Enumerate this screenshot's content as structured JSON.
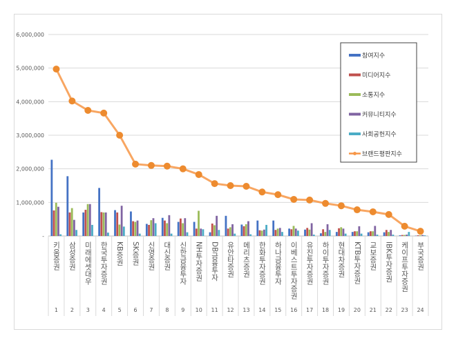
{
  "chart_data": {
    "type": "bar",
    "title": "",
    "xlabel": "",
    "ylabel": "",
    "ylim": [
      0,
      6000000
    ],
    "yticks": [
      0,
      1000000,
      2000000,
      3000000,
      4000000,
      5000000,
      6000000
    ],
    "ytick_labels": [
      "-",
      "1,000,000",
      "2,000,000",
      "3,000,000",
      "4,000,000",
      "5,000,000",
      "6,000,000"
    ],
    "grid": true,
    "legend_position": "top-right",
    "categories": [
      "키움증권",
      "삼성증권",
      "미래에셋대우",
      "한국투자증권",
      "KB증권",
      "SK증권",
      "신영증권",
      "대신증권",
      "신한금융투자",
      "NH투자증권",
      "DB금융투자",
      "유안타증권",
      "메리츠증권",
      "한화투자증권",
      "하나금융투자",
      "이베스트투자증권",
      "유진투자증권",
      "하이투자증권",
      "현대차증권",
      "KTB투자증권",
      "교보증권",
      "IBK투자증권",
      "케이프투자증권",
      "부국증권"
    ],
    "ranks": [
      "1",
      "2",
      "3",
      "4",
      "5",
      "6",
      "7",
      "8",
      "9",
      "10",
      "11",
      "12",
      "13",
      "14",
      "15",
      "16",
      "17",
      "18",
      "19",
      "20",
      "21",
      "22",
      "23",
      "24"
    ],
    "series": [
      {
        "name": "참여지수",
        "type": "bar",
        "color": "#4472c4",
        "values": [
          2270000,
          1780000,
          700000,
          1430000,
          770000,
          730000,
          360000,
          540000,
          420000,
          420000,
          110000,
          600000,
          340000,
          460000,
          460000,
          220000,
          190000,
          80000,
          120000,
          120000,
          110000,
          110000,
          20000,
          10000
        ]
      },
      {
        "name": "미디어지수",
        "type": "bar",
        "color": "#c0504d",
        "values": [
          760000,
          700000,
          780000,
          710000,
          700000,
          440000,
          330000,
          460000,
          520000,
          220000,
          370000,
          220000,
          290000,
          170000,
          180000,
          200000,
          240000,
          200000,
          230000,
          140000,
          140000,
          180000,
          30000,
          20000
        ]
      },
      {
        "name": "소통지수",
        "type": "bar",
        "color": "#9bbb59",
        "values": [
          990000,
          830000,
          950000,
          700000,
          340000,
          420000,
          470000,
          380000,
          380000,
          750000,
          320000,
          260000,
          350000,
          160000,
          220000,
          300000,
          190000,
          120000,
          260000,
          140000,
          140000,
          120000,
          30000,
          20000
        ]
      },
      {
        "name": "커뮤니티지수",
        "type": "bar",
        "color": "#8064a2",
        "values": [
          870000,
          480000,
          950000,
          700000,
          900000,
          460000,
          530000,
          620000,
          530000,
          220000,
          600000,
          350000,
          440000,
          190000,
          240000,
          220000,
          380000,
          350000,
          220000,
          290000,
          300000,
          180000,
          40000,
          30000
        ]
      },
      {
        "name": "사회공헌지수",
        "type": "bar",
        "color": "#4bacc6",
        "values": [
          50000,
          180000,
          330000,
          100000,
          280000,
          70000,
          380000,
          70000,
          110000,
          200000,
          180000,
          70000,
          50000,
          330000,
          120000,
          160000,
          40000,
          180000,
          70000,
          70000,
          40000,
          40000,
          120000,
          20000
        ]
      },
      {
        "name": "브랜드평판지수",
        "type": "line",
        "color": "#f79646",
        "values": [
          4970000,
          4020000,
          3740000,
          3660000,
          3000000,
          2140000,
          2100000,
          2080000,
          2000000,
          1830000,
          1560000,
          1500000,
          1480000,
          1310000,
          1230000,
          1090000,
          1070000,
          970000,
          900000,
          780000,
          720000,
          640000,
          290000,
          140000
        ]
      }
    ]
  }
}
